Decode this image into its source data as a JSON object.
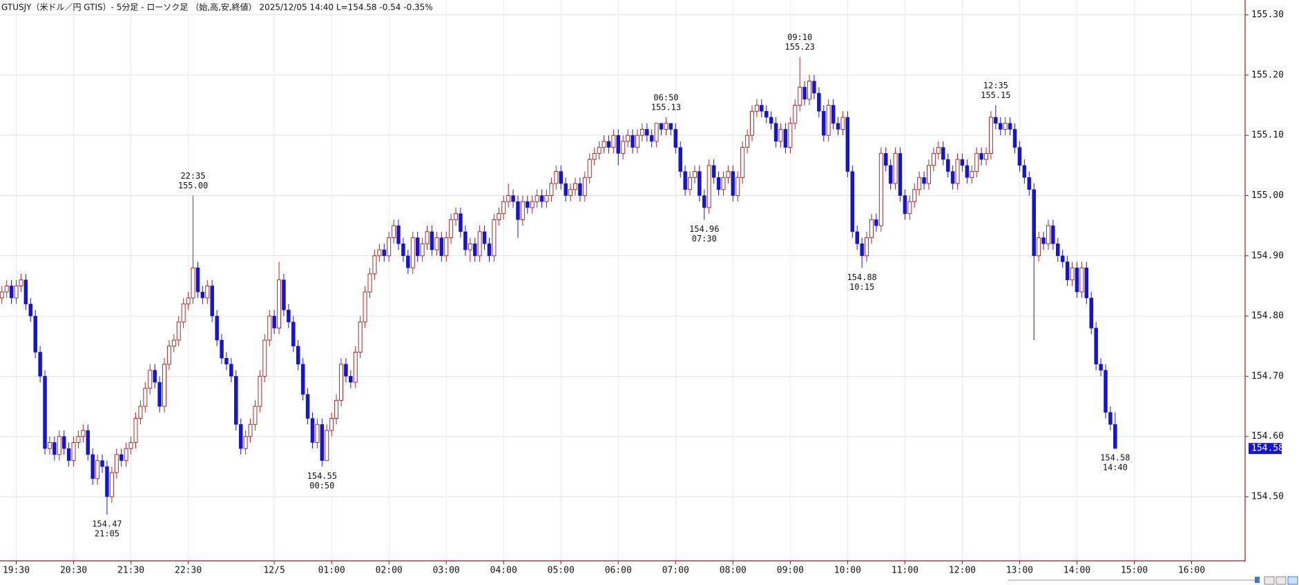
{
  "chart_data": {
    "type": "candlestick",
    "title": "GTUSJY（米ドル／円 GTIS）- 5分足 - ローソク足 （始,高,安,終値） 2025/12/05 14:40 L=154.58 -0.54 -0.35%",
    "up_color": "#a52a2a",
    "down_color": "#1414d2",
    "grid": true,
    "ylim": [
      154.3935,
      155.3247
    ],
    "yticks": [
      {
        "value": 154.5,
        "label": "154.50"
      },
      {
        "value": 154.6,
        "label": "154.60"
      },
      {
        "value": 154.7,
        "label": "154.70"
      },
      {
        "value": 154.8,
        "label": "154.80"
      },
      {
        "value": 154.9,
        "label": "154.90"
      },
      {
        "value": 155.0,
        "label": "155.00"
      },
      {
        "value": 155.1,
        "label": "155.10"
      },
      {
        "value": 155.2,
        "label": "155.20"
      },
      {
        "value": 155.3,
        "label": "155.30"
      }
    ],
    "xlim": [
      "19:13",
      "16:56"
    ],
    "xticks": [
      "19:30",
      "20:30",
      "21:30",
      "22:30",
      {
        "value": "00:00",
        "label": "12/5"
      },
      "01:00",
      "02:00",
      "03:00",
      "04:00",
      "05:00",
      "06:00",
      "07:00",
      "08:00",
      "09:00",
      "10:00",
      "11:00",
      "12:00",
      "13:00",
      "14:00",
      "15:00",
      "16:00"
    ],
    "x": [
      "19:15",
      "19:20",
      "19:25",
      "19:30",
      "19:35",
      "19:40",
      "19:45",
      "19:50",
      "19:55",
      "20:00",
      "20:05",
      "20:10",
      "20:15",
      "20:20",
      "20:25",
      "20:30",
      "20:35",
      "20:40",
      "20:45",
      "20:50",
      "20:55",
      "21:00",
      "21:05",
      "21:10",
      "21:15",
      "21:20",
      "21:25",
      "21:30",
      "21:35",
      "21:40",
      "21:45",
      "21:50",
      "21:55",
      "22:00",
      "22:05",
      "22:10",
      "22:15",
      "22:20",
      "22:25",
      "22:30",
      "22:35",
      "22:40",
      "22:45",
      "22:50",
      "22:55",
      "23:00",
      "23:05",
      "23:10",
      "23:15",
      "23:20",
      "23:25",
      "23:30",
      "23:35",
      "23:40",
      "23:45",
      "23:50",
      "23:55",
      "00:00",
      "00:05",
      "00:10",
      "00:15",
      "00:20",
      "00:25",
      "00:30",
      "00:35",
      "00:40",
      "00:45",
      "00:50",
      "00:55",
      "01:00",
      "01:05",
      "01:10",
      "01:15",
      "01:20",
      "01:25",
      "01:30",
      "01:35",
      "01:40",
      "01:45",
      "01:50",
      "01:55",
      "02:00",
      "02:05",
      "02:10",
      "02:15",
      "02:20",
      "02:25",
      "02:30",
      "02:35",
      "02:40",
      "02:45",
      "02:50",
      "02:55",
      "03:00",
      "03:05",
      "03:10",
      "03:15",
      "03:20",
      "03:25",
      "03:30",
      "03:35",
      "03:40",
      "03:45",
      "03:50",
      "03:55",
      "04:00",
      "04:05",
      "04:10",
      "04:15",
      "04:20",
      "04:25",
      "04:30",
      "04:35",
      "04:40",
      "04:45",
      "04:50",
      "04:55",
      "05:00",
      "05:05",
      "05:10",
      "05:15",
      "05:20",
      "05:25",
      "05:30",
      "05:35",
      "05:40",
      "05:45",
      "05:50",
      "05:55",
      "06:00",
      "06:05",
      "06:10",
      "06:15",
      "06:20",
      "06:25",
      "06:30",
      "06:35",
      "06:40",
      "06:45",
      "06:50",
      "06:55",
      "07:00",
      "07:05",
      "07:10",
      "07:15",
      "07:20",
      "07:25",
      "07:30",
      "07:35",
      "07:40",
      "07:45",
      "07:50",
      "07:55",
      "08:00",
      "08:05",
      "08:10",
      "08:15",
      "08:20",
      "08:25",
      "08:30",
      "08:35",
      "08:40",
      "08:45",
      "08:50",
      "08:55",
      "09:00",
      "09:05",
      "09:10",
      "09:15",
      "09:20",
      "09:25",
      "09:30",
      "09:35",
      "09:40",
      "09:45",
      "09:50",
      "09:55",
      "10:00",
      "10:05",
      "10:10",
      "10:15",
      "10:20",
      "10:25",
      "10:30",
      "10:35",
      "10:40",
      "10:45",
      "10:50",
      "10:55",
      "11:00",
      "11:05",
      "11:10",
      "11:15",
      "11:20",
      "11:25",
      "11:30",
      "11:35",
      "11:40",
      "11:45",
      "11:50",
      "11:55",
      "12:00",
      "12:05",
      "12:10",
      "12:15",
      "12:20",
      "12:25",
      "12:30",
      "12:35",
      "12:40",
      "12:45",
      "12:50",
      "12:55",
      "13:00",
      "13:05",
      "13:10",
      "13:15",
      "13:20",
      "13:25",
      "13:30",
      "13:35",
      "13:40",
      "13:45",
      "13:50",
      "13:55",
      "14:00",
      "14:05",
      "14:10",
      "14:15",
      "14:20",
      "14:25",
      "14:30",
      "14:35",
      "14:40"
    ],
    "open": [
      154.83,
      154.84,
      154.85,
      154.83,
      154.85,
      154.86,
      154.82,
      154.8,
      154.74,
      154.7,
      154.58,
      154.59,
      154.57,
      154.6,
      154.58,
      154.56,
      154.59,
      154.6,
      154.61,
      154.57,
      154.53,
      154.56,
      154.55,
      154.5,
      154.54,
      154.57,
      154.56,
      154.58,
      154.59,
      154.63,
      154.65,
      154.68,
      154.71,
      154.69,
      154.65,
      154.72,
      154.75,
      154.76,
      154.79,
      154.82,
      154.83,
      154.88,
      154.84,
      154.83,
      154.85,
      154.8,
      154.76,
      154.73,
      154.72,
      154.7,
      154.62,
      154.58,
      154.6,
      154.62,
      154.65,
      154.7,
      154.76,
      154.8,
      154.78,
      154.86,
      154.81,
      154.79,
      154.75,
      154.72,
      154.67,
      154.63,
      154.59,
      154.62,
      154.56,
      154.61,
      154.63,
      154.66,
      154.72,
      154.7,
      154.69,
      154.74,
      154.79,
      154.84,
      154.87,
      154.9,
      154.91,
      154.9,
      154.93,
      154.95,
      154.92,
      154.9,
      154.88,
      154.93,
      154.9,
      154.92,
      154.94,
      154.91,
      154.93,
      154.9,
      154.93,
      154.96,
      154.97,
      154.94,
      154.91,
      154.92,
      154.9,
      154.94,
      154.92,
      154.9,
      154.96,
      154.97,
      154.99,
      155.0,
      154.99,
      154.96,
      154.99,
      154.98,
      154.99,
      155.0,
      154.99,
      155.0,
      155.02,
      155.04,
      155.02,
      155.0,
      155.01,
      155.02,
      155.0,
      155.03,
      155.06,
      155.07,
      155.08,
      155.09,
      155.08,
      155.1,
      155.07,
      155.09,
      155.1,
      155.08,
      155.1,
      155.11,
      155.1,
      155.09,
      155.12,
      155.11,
      155.12,
      155.11,
      155.08,
      155.04,
      155.01,
      155.03,
      155.04,
      155.0,
      154.98,
      155.05,
      155.03,
      155.01,
      155.03,
      155.04,
      155.0,
      155.03,
      155.08,
      155.1,
      155.14,
      155.15,
      155.14,
      155.13,
      155.12,
      155.09,
      155.11,
      155.08,
      155.12,
      155.15,
      155.18,
      155.16,
      155.19,
      155.17,
      155.14,
      155.1,
      155.15,
      155.12,
      155.11,
      155.13,
      155.04,
      154.94,
      154.92,
      154.9,
      154.93,
      154.96,
      154.95,
      155.07,
      155.05,
      155.02,
      155.07,
      155.0,
      154.97,
      154.99,
      155.01,
      155.03,
      155.02,
      155.05,
      155.07,
      155.08,
      155.06,
      155.04,
      155.02,
      155.06,
      155.05,
      155.03,
      155.04,
      155.07,
      155.06,
      155.07,
      155.13,
      155.12,
      155.11,
      155.12,
      155.11,
      155.08,
      155.05,
      155.03,
      155.01,
      154.9,
      154.93,
      154.92,
      154.95,
      154.92,
      154.9,
      154.89,
      154.86,
      154.88,
      154.84,
      154.88,
      154.83,
      154.78,
      154.72,
      154.71,
      154.64,
      154.62
    ],
    "high": [
      154.85,
      154.86,
      154.86,
      154.86,
      154.87,
      154.87,
      154.83,
      154.81,
      154.75,
      154.71,
      154.6,
      154.6,
      154.61,
      154.61,
      154.59,
      154.6,
      154.61,
      154.62,
      154.62,
      154.58,
      154.57,
      154.57,
      154.56,
      154.55,
      154.58,
      154.58,
      154.59,
      154.6,
      154.64,
      154.66,
      154.69,
      154.72,
      154.72,
      154.7,
      154.73,
      154.76,
      154.77,
      154.8,
      154.83,
      154.84,
      155.0,
      154.89,
      154.85,
      154.86,
      154.86,
      154.81,
      154.77,
      154.74,
      154.73,
      154.71,
      154.63,
      154.61,
      154.63,
      154.66,
      154.71,
      154.77,
      154.81,
      154.81,
      154.89,
      154.87,
      154.82,
      154.8,
      154.76,
      154.73,
      154.68,
      154.64,
      154.63,
      154.63,
      154.62,
      154.64,
      154.67,
      154.73,
      154.73,
      154.71,
      154.75,
      154.8,
      154.85,
      154.88,
      154.91,
      154.92,
      154.92,
      154.94,
      154.96,
      154.96,
      154.93,
      154.91,
      154.94,
      154.94,
      154.93,
      154.95,
      154.95,
      154.94,
      154.94,
      154.94,
      154.97,
      154.98,
      154.98,
      154.95,
      154.93,
      154.93,
      154.95,
      154.95,
      154.93,
      154.97,
      154.98,
      155.0,
      155.02,
      155.01,
      155.0,
      155.0,
      155.0,
      155.0,
      155.01,
      155.01,
      155.01,
      155.03,
      155.05,
      155.05,
      155.03,
      155.02,
      155.03,
      155.03,
      155.04,
      155.07,
      155.08,
      155.09,
      155.1,
      155.1,
      155.11,
      155.11,
      155.1,
      155.11,
      155.11,
      155.11,
      155.12,
      155.12,
      155.11,
      155.12,
      155.12,
      155.13,
      155.12,
      155.12,
      155.09,
      155.05,
      155.04,
      155.05,
      155.05,
      155.01,
      155.06,
      155.06,
      155.04,
      155.04,
      155.05,
      155.05,
      155.04,
      155.09,
      155.11,
      155.15,
      155.16,
      155.16,
      155.15,
      155.14,
      155.13,
      155.12,
      155.12,
      155.13,
      155.16,
      155.23,
      155.19,
      155.2,
      155.2,
      155.18,
      155.15,
      155.16,
      155.16,
      155.13,
      155.14,
      155.14,
      155.05,
      154.95,
      154.93,
      154.94,
      154.97,
      154.97,
      155.08,
      155.08,
      155.06,
      155.08,
      155.08,
      155.01,
      155.0,
      155.02,
      155.04,
      155.04,
      155.06,
      155.08,
      155.09,
      155.09,
      155.07,
      155.05,
      155.07,
      155.07,
      155.06,
      155.05,
      155.08,
      155.08,
      155.08,
      155.14,
      155.15,
      155.13,
      155.13,
      155.13,
      155.12,
      155.09,
      155.06,
      155.04,
      155.02,
      154.94,
      154.94,
      154.96,
      154.96,
      154.93,
      154.91,
      154.9,
      154.89,
      154.89,
      154.89,
      154.89,
      154.84,
      154.79,
      154.73,
      154.72,
      154.65,
      154.64
    ],
    "low": [
      154.82,
      154.83,
      154.82,
      154.82,
      154.84,
      154.81,
      154.79,
      154.73,
      154.69,
      154.57,
      154.57,
      154.56,
      154.56,
      154.57,
      154.55,
      154.55,
      154.58,
      154.59,
      154.56,
      154.52,
      154.52,
      154.54,
      154.47,
      154.49,
      154.53,
      154.55,
      154.55,
      154.57,
      154.58,
      154.62,
      154.64,
      154.67,
      154.68,
      154.64,
      154.64,
      154.71,
      154.74,
      154.75,
      154.78,
      154.81,
      154.82,
      154.83,
      154.82,
      154.82,
      154.79,
      154.75,
      154.72,
      154.71,
      154.69,
      154.61,
      154.57,
      154.57,
      154.59,
      154.61,
      154.64,
      154.69,
      154.75,
      154.77,
      154.77,
      154.8,
      154.78,
      154.74,
      154.71,
      154.66,
      154.62,
      154.58,
      154.58,
      154.55,
      154.56,
      154.6,
      154.62,
      154.65,
      154.69,
      154.68,
      154.68,
      154.73,
      154.78,
      154.83,
      154.86,
      154.89,
      154.89,
      154.89,
      154.92,
      154.91,
      154.89,
      154.87,
      154.87,
      154.89,
      154.89,
      154.91,
      154.9,
      154.9,
      154.89,
      154.89,
      154.92,
      154.95,
      154.93,
      154.9,
      154.89,
      154.89,
      154.89,
      154.91,
      154.89,
      154.89,
      154.95,
      154.96,
      154.98,
      154.98,
      154.93,
      154.95,
      154.97,
      154.97,
      154.98,
      154.98,
      154.98,
      154.99,
      155.01,
      155.01,
      154.99,
      154.99,
      155.0,
      154.99,
      154.99,
      155.02,
      155.05,
      155.06,
      155.07,
      155.07,
      155.07,
      155.05,
      155.06,
      155.08,
      155.07,
      155.07,
      155.09,
      155.09,
      155.08,
      155.08,
      155.1,
      155.1,
      155.1,
      155.07,
      155.03,
      155.0,
      155.0,
      155.02,
      154.99,
      154.96,
      154.97,
      155.02,
      155.0,
      155.0,
      155.02,
      154.99,
      154.99,
      155.02,
      155.07,
      155.09,
      155.13,
      155.13,
      155.12,
      155.11,
      155.08,
      155.08,
      155.07,
      155.07,
      155.11,
      155.14,
      155.15,
      155.15,
      155.16,
      155.13,
      155.09,
      155.09,
      155.11,
      155.1,
      155.1,
      155.03,
      154.93,
      154.91,
      154.88,
      154.89,
      154.92,
      154.94,
      154.94,
      155.04,
      155.01,
      155.01,
      154.99,
      154.96,
      154.96,
      154.98,
      155.0,
      155.01,
      155.01,
      155.04,
      155.06,
      155.05,
      155.03,
      155.01,
      155.01,
      155.04,
      155.02,
      155.02,
      155.03,
      155.05,
      155.05,
      155.06,
      155.11,
      155.1,
      155.1,
      155.1,
      155.07,
      155.04,
      155.02,
      155.0,
      154.76,
      154.89,
      154.91,
      154.91,
      154.91,
      154.89,
      154.88,
      154.85,
      154.85,
      154.83,
      154.83,
      154.82,
      154.77,
      154.71,
      154.7,
      154.63,
      154.61,
      154.58
    ],
    "close": [
      154.84,
      154.85,
      154.83,
      154.85,
      154.86,
      154.82,
      154.8,
      154.74,
      154.7,
      154.58,
      154.59,
      154.57,
      154.6,
      154.58,
      154.56,
      154.59,
      154.6,
      154.61,
      154.57,
      154.53,
      154.56,
      154.55,
      154.5,
      154.54,
      154.57,
      154.56,
      154.58,
      154.59,
      154.63,
      154.65,
      154.68,
      154.71,
      154.69,
      154.65,
      154.72,
      154.75,
      154.76,
      154.79,
      154.82,
      154.83,
      154.88,
      154.84,
      154.83,
      154.85,
      154.8,
      154.76,
      154.73,
      154.72,
      154.7,
      154.62,
      154.58,
      154.6,
      154.62,
      154.65,
      154.7,
      154.76,
      154.8,
      154.78,
      154.86,
      154.81,
      154.79,
      154.75,
      154.72,
      154.67,
      154.63,
      154.59,
      154.62,
      154.56,
      154.61,
      154.63,
      154.66,
      154.72,
      154.7,
      154.69,
      154.74,
      154.79,
      154.84,
      154.87,
      154.9,
      154.91,
      154.9,
      154.93,
      154.95,
      154.92,
      154.9,
      154.88,
      154.93,
      154.9,
      154.92,
      154.94,
      154.91,
      154.93,
      154.9,
      154.93,
      154.96,
      154.97,
      154.94,
      154.91,
      154.92,
      154.9,
      154.94,
      154.92,
      154.9,
      154.96,
      154.97,
      154.99,
      155.0,
      154.99,
      154.96,
      154.99,
      154.98,
      154.99,
      155.0,
      154.99,
      155.0,
      155.02,
      155.04,
      155.02,
      155.0,
      155.01,
      155.02,
      155.0,
      155.03,
      155.06,
      155.07,
      155.08,
      155.09,
      155.08,
      155.1,
      155.07,
      155.09,
      155.1,
      155.08,
      155.1,
      155.11,
      155.1,
      155.09,
      155.12,
      155.11,
      155.12,
      155.11,
      155.08,
      155.04,
      155.01,
      155.03,
      155.04,
      155.0,
      154.98,
      155.05,
      155.03,
      155.01,
      155.03,
      155.04,
      155.0,
      155.03,
      155.08,
      155.1,
      155.14,
      155.15,
      155.14,
      155.13,
      155.12,
      155.09,
      155.11,
      155.08,
      155.12,
      155.15,
      155.18,
      155.16,
      155.19,
      155.17,
      155.14,
      155.1,
      155.15,
      155.12,
      155.11,
      155.13,
      155.04,
      154.94,
      154.92,
      154.9,
      154.93,
      154.96,
      154.95,
      155.07,
      155.05,
      155.02,
      155.07,
      155.0,
      154.97,
      154.99,
      155.01,
      155.03,
      155.02,
      155.05,
      155.07,
      155.08,
      155.06,
      155.04,
      155.02,
      155.06,
      155.05,
      155.03,
      155.04,
      155.07,
      155.06,
      155.07,
      155.13,
      155.12,
      155.11,
      155.12,
      155.11,
      155.08,
      155.05,
      155.03,
      155.01,
      154.9,
      154.93,
      154.92,
      154.95,
      154.92,
      154.9,
      154.89,
      154.86,
      154.88,
      154.84,
      154.88,
      154.83,
      154.78,
      154.72,
      154.71,
      154.64,
      154.62,
      154.58
    ],
    "annotations": [
      {
        "time": "21:05",
        "price": 154.47
      },
      {
        "time": "22:35",
        "price": {
          "value": 155.0,
          "label": "155.00"
        }
      },
      {
        "time": "00:50",
        "price": 154.55
      },
      {
        "time": "06:50",
        "price": 155.13
      },
      {
        "time": "07:30",
        "price": 154.96
      },
      {
        "time": "09:10",
        "price": 155.23
      },
      {
        "time": "10:15",
        "price": 154.88
      },
      {
        "time": "12:35",
        "price": 155.15
      },
      {
        "time": "14:40",
        "price": 154.58
      }
    ],
    "last_price": 154.58
  }
}
